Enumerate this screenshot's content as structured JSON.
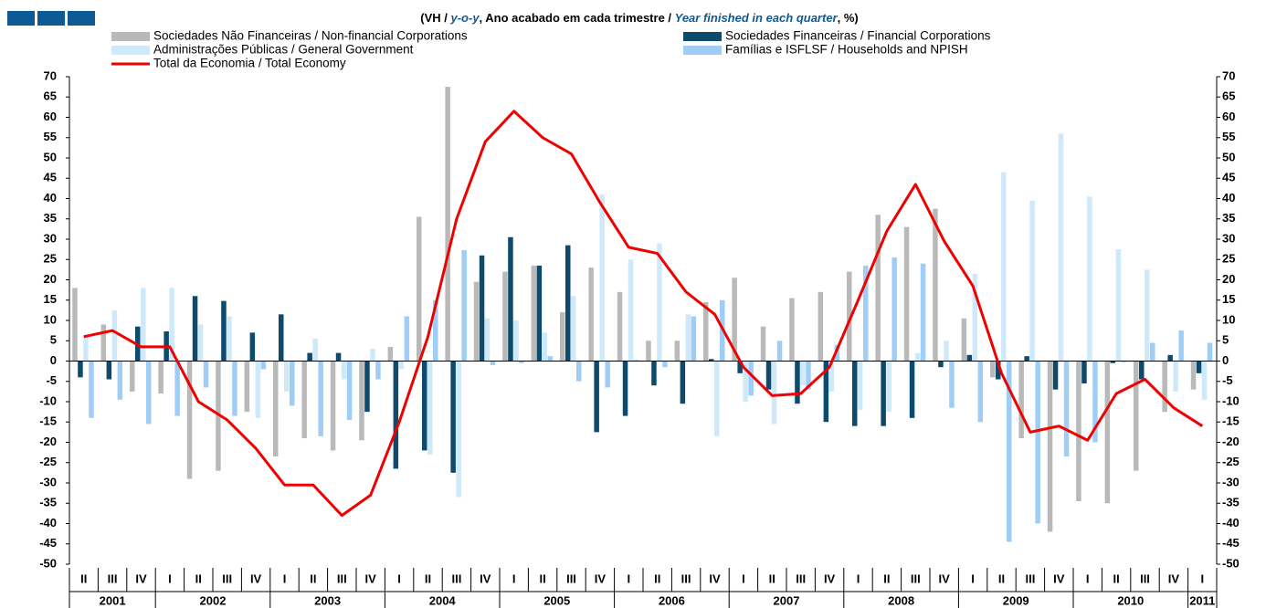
{
  "chart_data": {
    "type": "bar_line",
    "title_parts": [
      "(VH / ",
      "y-o-y",
      ", Ano acabado em cada trimestre / ",
      "Year finished in each quarter",
      ", %)"
    ],
    "categories": [
      "II",
      "III",
      "IV",
      "I",
      "II",
      "III",
      "IV",
      "I",
      "II",
      "III",
      "IV",
      "I",
      "II",
      "III",
      "IV",
      "I",
      "II",
      "III",
      "IV",
      "I",
      "II",
      "III",
      "IV",
      "I",
      "II",
      "III",
      "IV",
      "I",
      "II",
      "III",
      "IV",
      "I",
      "II",
      "III",
      "IV",
      "I",
      "II",
      "III",
      "IV",
      "I"
    ],
    "years": [
      "2001",
      "2002",
      "2003",
      "2004",
      "2005",
      "2006",
      "2007",
      "2008",
      "2009",
      "2010",
      "2011"
    ],
    "ylim": [
      -50,
      70
    ],
    "yticks": [
      -50,
      -45,
      -40,
      -35,
      -30,
      -25,
      -20,
      -15,
      -10,
      -5,
      0,
      5,
      10,
      15,
      20,
      25,
      30,
      35,
      40,
      45,
      50,
      55,
      60,
      65,
      70
    ],
    "series": [
      {
        "name": "Sociedades Não Financeiras / Non-financial Corporations",
        "color": "#b9b9b9",
        "kind": "bar",
        "values": [
          18,
          9,
          -7.5,
          -8,
          -29,
          -27,
          -12.5,
          -23.5,
          -19,
          -22,
          -19.5,
          3.5,
          35.5,
          67.5,
          19.5,
          22,
          23.5,
          12,
          23,
          17,
          5,
          5,
          14.5,
          20.5,
          8.5,
          15.5,
          17,
          22,
          36,
          33,
          37.5,
          10.5,
          -4,
          -19,
          -42,
          -34.5,
          -35,
          -27,
          -12.5,
          -7
        ]
      },
      {
        "name": "Sociedades Financeiras / Financial Corporations",
        "color": "#0d4a6b",
        "kind": "bar",
        "values": [
          -4,
          -4.5,
          8.5,
          7.3,
          16,
          14.8,
          7,
          11.5,
          2,
          2,
          -12.5,
          -26.5,
          -22,
          -27.5,
          26,
          30.5,
          23.5,
          28.5,
          -17.5,
          -13.5,
          -6,
          -10.5,
          0.5,
          -3,
          -7,
          -10.5,
          -15,
          -16,
          -16,
          -14,
          -1.5,
          1.5,
          -4.5,
          1.2,
          -7,
          -5.5,
          -0.5,
          -4.5,
          1.5,
          -3
        ]
      },
      {
        "name": "Administrações Públicas / General Government",
        "color": "#cde9fa",
        "kind": "bar",
        "values": [
          6,
          12.5,
          18,
          18,
          9,
          11,
          -14,
          -7.5,
          5.5,
          -4.5,
          3,
          -2,
          -23,
          -33.5,
          10.5,
          10,
          7,
          16,
          41,
          25,
          29,
          11.5,
          -18.5,
          -10,
          -15.5,
          -6,
          -7.5,
          -12,
          -12.5,
          2,
          5,
          21.5,
          46.5,
          39.5,
          56,
          40.5,
          27.5,
          22.5,
          -7.5,
          -9.5
        ]
      },
      {
        "name": "Famílias e ISFLSF / Households and NPISH",
        "color": "#9fcdf5",
        "kind": "bar",
        "values": [
          -14,
          -9.5,
          -15.5,
          -13.5,
          -6.5,
          -13.5,
          -2,
          -11,
          -18.5,
          -14.5,
          -4.5,
          11,
          15,
          27.3,
          -1,
          -0.5,
          1.2,
          -5,
          -6.5,
          0.3,
          -1.5,
          11,
          15,
          -8.5,
          5,
          -7,
          4,
          23.5,
          25.5,
          24,
          -11.5,
          -15,
          -44.5,
          -40,
          -23.5,
          -20,
          -0.3,
          4.5,
          7.5,
          4.5
        ]
      },
      {
        "name": "Total da Economia / Total Economy",
        "color": "#f00000",
        "kind": "line",
        "values": [
          6,
          7.5,
          3.5,
          3.5,
          -10,
          -14.5,
          -21.5,
          -30.5,
          -30.5,
          -38,
          -33,
          -15,
          6,
          35,
          54,
          61.5,
          55,
          51,
          39,
          28,
          26.5,
          17,
          11.5,
          -1.5,
          -8.5,
          -8,
          -1.5,
          15,
          32,
          43.5,
          29.5,
          18.5,
          -3,
          -17.5,
          -16,
          -19.5,
          -8,
          -4.5,
          -11.5,
          -16
        ]
      }
    ]
  }
}
